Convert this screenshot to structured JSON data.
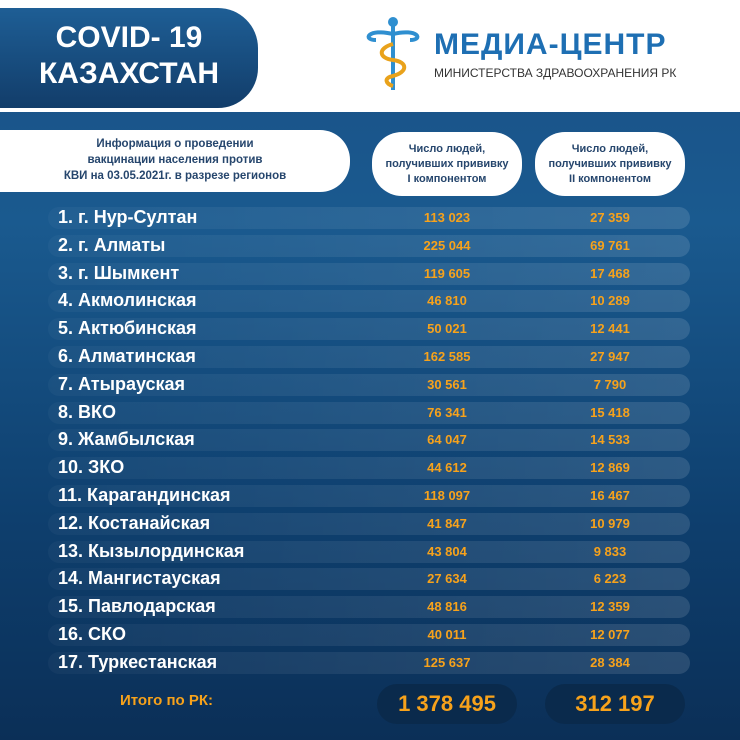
{
  "header": {
    "title_line1": "COVID- 19",
    "title_line2": "КАЗАХСТАН",
    "logo_name": "МЕДИА-ЦЕНТР",
    "logo_subtitle": "МИНИСТЕРСТВА ЗДРАВООХРАНЕНИЯ РК"
  },
  "table": {
    "caption": [
      "Информация о проведении",
      "вакцинации населения против",
      "КВИ на 03.05.2021г. в разрезе регионов"
    ],
    "columns": [
      [
        "Число людей,",
        "получивших прививку",
        "I компонентом"
      ],
      [
        "Число людей,",
        "получивших прививку",
        "II компонентом"
      ]
    ],
    "rows": [
      [
        "1. г. Нур-Султан",
        "113 023",
        "27 359"
      ],
      [
        "2. г. Алматы",
        "225 044",
        "69 761"
      ],
      [
        "3. г. Шымкент",
        "119 605",
        "17 468"
      ],
      [
        "4. Акмолинская",
        "46 810",
        "10 289"
      ],
      [
        "5. Актюбинская",
        "50 021",
        "12 441"
      ],
      [
        "6. Алматинская",
        "162 585",
        "27 947"
      ],
      [
        "7. Атырауская",
        "30 561",
        "7 790"
      ],
      [
        "8. ВКО",
        "76 341",
        "15 418"
      ],
      [
        "9. Жамбылская",
        "64 047",
        "14 533"
      ],
      [
        "10. ЗКО",
        "44 612",
        "12 869"
      ],
      [
        "11. Карагандинская",
        "118 097",
        "16 467"
      ],
      [
        "12. Костанайская",
        "41 847",
        "10 979"
      ],
      [
        "13. Кызылординская",
        "43 804",
        "9 833"
      ],
      [
        "14. Мангистауская",
        "27 634",
        "6 223"
      ],
      [
        "15. Павлодарская",
        "48 816",
        "12 359"
      ],
      [
        "16. СКО",
        "40 011",
        "12 077"
      ],
      [
        "17. Туркестанская",
        "125 637",
        "28 384"
      ]
    ],
    "total": {
      "label": "Итого по РК:",
      "values": [
        "1 378 495",
        "312 197"
      ]
    }
  }
}
